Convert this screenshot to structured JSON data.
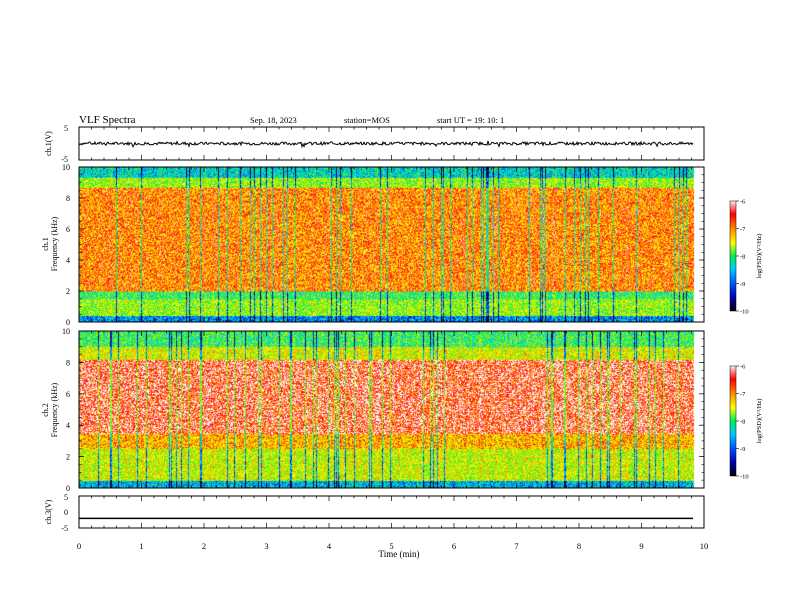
{
  "header": {
    "title": "VLF Spectra",
    "date": "Sep. 18, 2023",
    "station": "station=MOS",
    "start": "start  UT =   19: 10: 1"
  },
  "colors": {
    "colormap": [
      "#000033",
      "#0000cc",
      "#0066ff",
      "#00ccff",
      "#00ff66",
      "#99ee00",
      "#ffff00",
      "#ff9900",
      "#ff0000",
      "#ffffff"
    ]
  },
  "chart_data": [
    {
      "type": "line",
      "name": "ch1-waveform",
      "ylabel": "ch.1(V)",
      "ylim": [
        -5,
        5
      ],
      "yticks": [
        "5",
        "-5"
      ],
      "xlim": [
        0,
        10
      ],
      "baseline": 0
    },
    {
      "type": "heatmap",
      "name": "ch1-spectrogram",
      "ylabel": "ch.1\nFrequency (kHz)",
      "ylim": [
        0,
        10
      ],
      "yticks": [
        "0",
        "2",
        "4",
        "6",
        "8",
        "10"
      ],
      "xlim": [
        0,
        10
      ],
      "data_end_min": 9.83,
      "colorbar": {
        "label": "log(PSD)(V²/Hz)",
        "range": [
          -10,
          -6
        ],
        "ticks": [
          "-6",
          "-7",
          "-8",
          "-9",
          "-10"
        ]
      }
    },
    {
      "type": "heatmap",
      "name": "ch2-spectrogram",
      "ylabel": "ch.2\nFrequency (kHz)",
      "ylim": [
        0,
        10
      ],
      "yticks": [
        "0",
        "2",
        "4",
        "6",
        "8",
        "10"
      ],
      "xlim": [
        0,
        10
      ],
      "data_end_min": 9.83,
      "colorbar": {
        "label": "log(PSD)(V²/Hz)",
        "range": [
          -10,
          -6
        ],
        "ticks": [
          "-6",
          "-7",
          "-8",
          "-9",
          "-10"
        ]
      }
    },
    {
      "type": "line",
      "name": "ch3-waveform",
      "ylabel": "ch.3(V)",
      "ylim": [
        -5,
        5
      ],
      "yticks": [
        "5",
        "0",
        "-5"
      ],
      "xlim": [
        0,
        10
      ],
      "baseline": -2
    }
  ],
  "xaxis": {
    "label": "Time  (min)",
    "ticks": [
      "0",
      "1",
      "2",
      "3",
      "4",
      "5",
      "6",
      "7",
      "8",
      "9",
      "10"
    ]
  }
}
